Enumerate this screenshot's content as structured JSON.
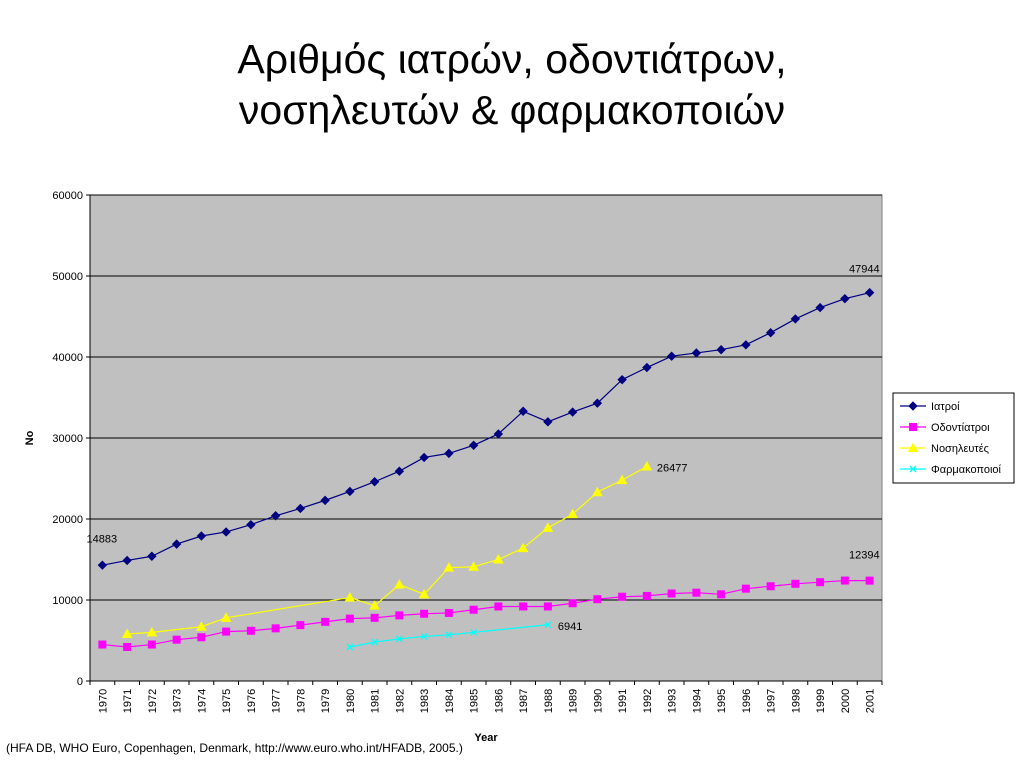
{
  "slide": {
    "title_line1": "Αριθμός ιατρών, οδοντιάτρων,",
    "title_line2": "νοσηλευτών & φαρμακοποιών",
    "source": "(HFA DB, WHO Euro, Copenhagen, Denmark, http://www.euro.who.int/HFADB, 2005.)"
  },
  "chart_data": {
    "type": "line",
    "title": "",
    "xlabel": "Year",
    "ylabel": "No",
    "ylim": [
      0,
      60000
    ],
    "yticks": [
      0,
      10000,
      20000,
      30000,
      40000,
      50000,
      60000
    ],
    "grid": "horizontal",
    "legend_position": "right",
    "plot_background": "#C0C0C0",
    "categories": [
      "1970",
      "1971",
      "1972",
      "1973",
      "1974",
      "1975",
      "1976",
      "1977",
      "1978",
      "1979",
      "1980",
      "1981",
      "1982",
      "1983",
      "1984",
      "1985",
      "1986",
      "1987",
      "1988",
      "1989",
      "1990",
      "1991",
      "1992",
      "1993",
      "1994",
      "1995",
      "1996",
      "1997",
      "1998",
      "1999",
      "2000",
      "2001"
    ],
    "series": [
      {
        "name": "Ιατροί",
        "color": "#000080",
        "marker": "diamond",
        "values": [
          14300,
          14883,
          15400,
          16900,
          17900,
          18400,
          19300,
          20400,
          21300,
          22300,
          23400,
          24600,
          25900,
          27600,
          28100,
          29100,
          30500,
          33300,
          32000,
          33200,
          34300,
          37200,
          38700,
          40100,
          40500,
          40900,
          41500,
          43000,
          44700,
          46100,
          47200,
          47944
        ]
      },
      {
        "name": "Οδοντίατροι",
        "color": "#FF00FF",
        "marker": "square",
        "values": [
          4500,
          4200,
          4500,
          5100,
          5400,
          6100,
          6200,
          6500,
          6900,
          7300,
          7700,
          7800,
          8100,
          8300,
          8400,
          8800,
          9200,
          9200,
          9200,
          9600,
          10100,
          10400,
          10500,
          10800,
          10900,
          10700,
          11400,
          11700,
          12000,
          12200,
          12400,
          12394
        ]
      },
      {
        "name": "Νοσηλευτές",
        "color": "#FFFF00",
        "marker": "triangle",
        "values": [
          null,
          5800,
          6000,
          null,
          6700,
          7800,
          null,
          null,
          null,
          null,
          10300,
          9300,
          11900,
          10700,
          14000,
          14100,
          15000,
          16400,
          18900,
          20600,
          23300,
          24800,
          26477,
          null,
          null,
          null,
          null,
          null,
          null,
          null,
          null,
          null
        ]
      },
      {
        "name": "Φαρμακοποιοί",
        "color": "#00FFFF",
        "marker": "x",
        "values": [
          null,
          null,
          null,
          null,
          null,
          null,
          null,
          null,
          null,
          null,
          4200,
          4800,
          5200,
          5500,
          5700,
          6000,
          null,
          null,
          6941,
          null,
          null,
          null,
          null,
          null,
          null,
          null,
          null,
          null,
          null,
          null,
          null,
          null
        ]
      }
    ],
    "data_labels": [
      {
        "series": "Ιατροί",
        "category": "1971",
        "text": "14883"
      },
      {
        "series": "Ιατροί",
        "category": "2001",
        "text": "47944"
      },
      {
        "series": "Οδοντίατροι",
        "category": "2001",
        "text": "12394"
      },
      {
        "series": "Νοσηλευτές",
        "category": "1992",
        "text": "26477"
      },
      {
        "series": "Φαρμακοποιοί",
        "category": "1988",
        "text": "6941"
      }
    ]
  }
}
